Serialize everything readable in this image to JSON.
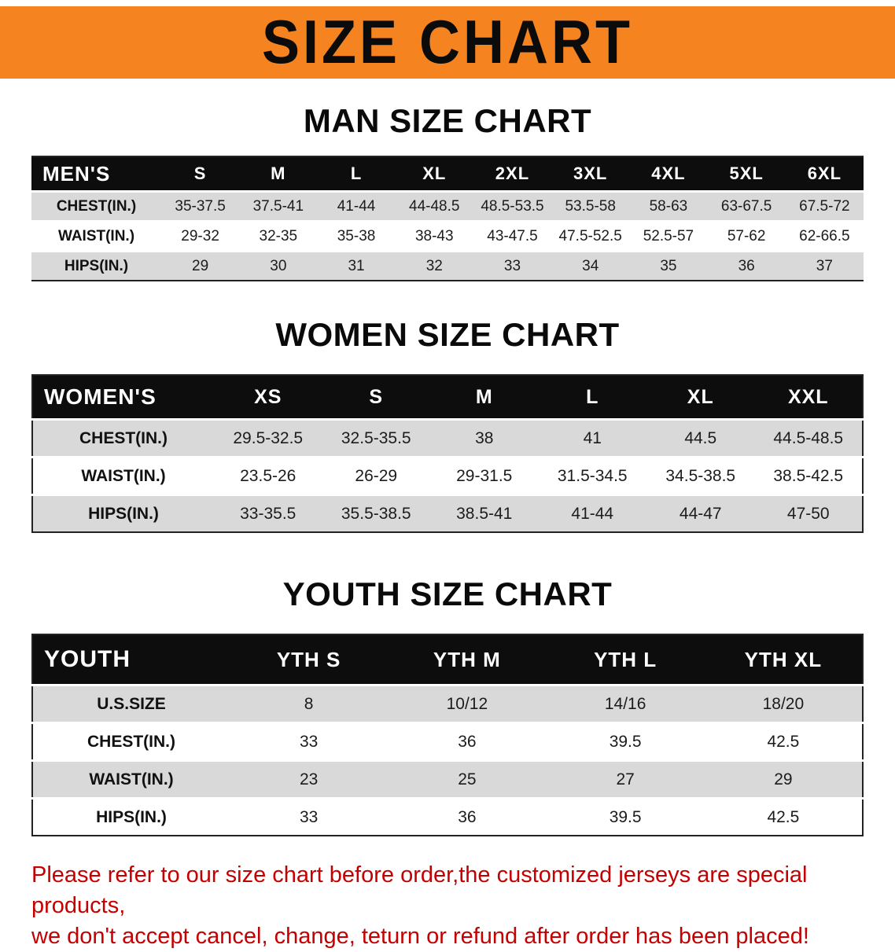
{
  "banner": {
    "title": "SIZE CHART",
    "bg_color": "#F5831F"
  },
  "sections": [
    {
      "heading": "MAN SIZE CHART",
      "table": {
        "corner": "MEN'S",
        "columns": [
          "S",
          "M",
          "L",
          "XL",
          "2XL",
          "3XL",
          "4XL",
          "5XL",
          "6XL"
        ],
        "rows": [
          {
            "label": "CHEST(IN.)",
            "values": [
              "35-37.5",
              "37.5-41",
              "41-44",
              "44-48.5",
              "48.5-53.5",
              "53.5-58",
              "58-63",
              "63-67.5",
              "67.5-72"
            ]
          },
          {
            "label": "WAIST(IN.)",
            "values": [
              "29-32",
              "32-35",
              "35-38",
              "38-43",
              "43-47.5",
              "47.5-52.5",
              "52.5-57",
              "57-62",
              "62-66.5"
            ]
          },
          {
            "label": "HIPS(IN.)",
            "values": [
              "29",
              "30",
              "31",
              "32",
              "33",
              "34",
              "35",
              "36",
              "37"
            ]
          }
        ]
      }
    },
    {
      "heading": "WOMEN SIZE CHART",
      "table": {
        "corner": "WOMEN'S",
        "columns": [
          "XS",
          "S",
          "M",
          "L",
          "XL",
          "XXL"
        ],
        "rows": [
          {
            "label": "CHEST(IN.)",
            "values": [
              "29.5-32.5",
              "32.5-35.5",
              "38",
              "41",
              "44.5",
              "44.5-48.5"
            ]
          },
          {
            "label": "WAIST(IN.)",
            "values": [
              "23.5-26",
              "26-29",
              "29-31.5",
              "31.5-34.5",
              "34.5-38.5",
              "38.5-42.5"
            ]
          },
          {
            "label": "HIPS(IN.)",
            "values": [
              "33-35.5",
              "35.5-38.5",
              "38.5-41",
              "41-44",
              "44-47",
              "47-50"
            ]
          }
        ]
      }
    },
    {
      "heading": "YOUTH SIZE CHART",
      "table": {
        "corner": "YOUTH",
        "columns": [
          "YTH S",
          "YTH M",
          "YTH L",
          "YTH XL"
        ],
        "rows": [
          {
            "label": "U.S.SIZE",
            "values": [
              "8",
              "10/12",
              "14/16",
              "18/20"
            ]
          },
          {
            "label": "CHEST(IN.)",
            "values": [
              "33",
              "36",
              "39.5",
              "42.5"
            ]
          },
          {
            "label": "WAIST(IN.)",
            "values": [
              "23",
              "25",
              "27",
              "29"
            ]
          },
          {
            "label": "HIPS(IN.)",
            "values": [
              "33",
              "36",
              "39.5",
              "42.5"
            ]
          }
        ]
      }
    }
  ],
  "footer": {
    "line1": "Please refer to our size chart before order,the customized jerseys are special products,",
    "line2": "we don't accept cancel, change, teturn or refund after order has been placed!"
  }
}
